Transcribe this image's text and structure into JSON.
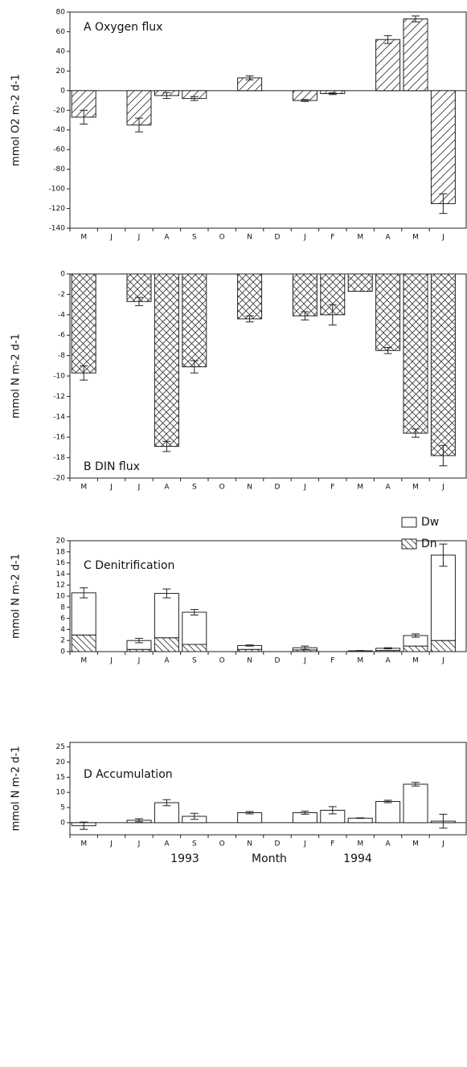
{
  "chart_data": [
    {
      "type": "bar",
      "title": "A  Oxygen flux",
      "ylabel": "mmol O2 m-2 d-1",
      "categories": [
        "M",
        "J",
        "J",
        "A",
        "S",
        "O",
        "N",
        "D",
        "J",
        "F",
        "M",
        "A",
        "M",
        "J"
      ],
      "values": [
        -27,
        null,
        -35,
        -5,
        -8,
        null,
        13,
        null,
        -10,
        -3,
        null,
        52,
        73,
        -115
      ],
      "errors": [
        7,
        null,
        7,
        3,
        2,
        null,
        2,
        null,
        1,
        1,
        null,
        4,
        3,
        10
      ],
      "hatch": "diagonal",
      "ylim": [
        -140,
        80
      ],
      "yticks": [
        -140,
        -120,
        -100,
        -80,
        -60,
        -40,
        -20,
        0,
        20,
        40,
        60,
        80
      ]
    },
    {
      "type": "bar",
      "title": "B   DIN flux",
      "ylabel": "mmol N m-2 d-1",
      "categories": [
        "M",
        "J",
        "J",
        "A",
        "S",
        "O",
        "N",
        "D",
        "J",
        "F",
        "M",
        "A",
        "M",
        "J"
      ],
      "values": [
        -9.7,
        null,
        -2.7,
        -16.9,
        -9.1,
        null,
        -4.4,
        null,
        -4.1,
        -4.0,
        -1.7,
        -7.5,
        -15.6,
        -17.8
      ],
      "errors": [
        0.7,
        null,
        0.4,
        0.5,
        0.6,
        null,
        0.3,
        null,
        0.4,
        1.0,
        null,
        0.3,
        0.4,
        1.0
      ],
      "hatch": "crosshatch",
      "ylim": [
        -20,
        0
      ],
      "yticks": [
        -20,
        -18,
        -16,
        -14,
        -12,
        -10,
        -8,
        -6,
        -4,
        -2,
        0
      ]
    },
    {
      "type": "bar",
      "title": "C    Denitrification",
      "ylabel": "mmol N m-2 d-1",
      "categories": [
        "M",
        "J",
        "J",
        "A",
        "S",
        "O",
        "N",
        "D",
        "J",
        "F",
        "M",
        "A",
        "M",
        "J"
      ],
      "series": [
        {
          "name": "Dw",
          "hatch": "none",
          "values": [
            7.6,
            null,
            1.6,
            8.0,
            5.8,
            null,
            0.7,
            null,
            0.4,
            null,
            0.1,
            0.4,
            1.9,
            15.4
          ],
          "errors": [
            0.9,
            null,
            0.4,
            0.8,
            0.5,
            null,
            0.1,
            null,
            0.3,
            null,
            0.05,
            0.1,
            0.3,
            2.0
          ]
        },
        {
          "name": "Dn",
          "hatch": "backslash",
          "values": [
            3.0,
            null,
            0.4,
            2.5,
            1.3,
            null,
            0.4,
            null,
            0.3,
            null,
            0.05,
            0.2,
            1.0,
            2.0
          ]
        }
      ],
      "ylim": [
        0,
        20
      ],
      "yticks": [
        0,
        2,
        4,
        6,
        8,
        10,
        12,
        14,
        16,
        18,
        20
      ]
    },
    {
      "type": "bar",
      "title": "D    Accumulation",
      "ylabel": "mmol N m-2 d-1",
      "xlabel": "Month",
      "annotations": [
        "1993",
        "1994"
      ],
      "categories": [
        "M",
        "J",
        "J",
        "A",
        "S",
        "O",
        "N",
        "D",
        "J",
        "F",
        "M",
        "A",
        "M",
        "J"
      ],
      "values": [
        -1.0,
        null,
        0.8,
        6.6,
        2.1,
        null,
        3.3,
        null,
        3.3,
        4.1,
        1.5,
        7.0,
        12.7,
        0.5
      ],
      "errors": [
        1.2,
        null,
        0.5,
        1.0,
        1.0,
        null,
        0.4,
        null,
        0.5,
        1.2,
        0.1,
        0.4,
        0.6,
        2.3
      ],
      "hatch": "none",
      "ylim": [
        -4,
        26.5
      ],
      "yticks": [
        0,
        5,
        10,
        15,
        20,
        25
      ]
    }
  ]
}
